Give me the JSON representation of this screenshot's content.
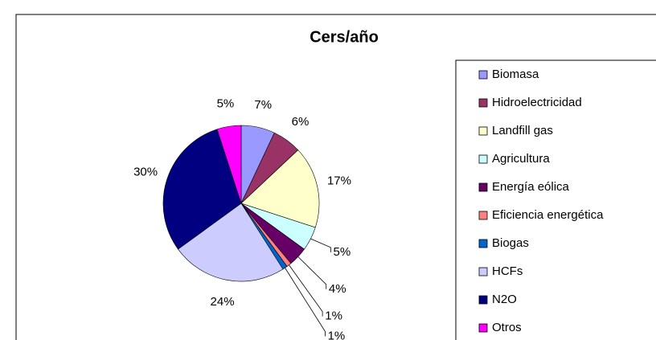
{
  "chart_data": {
    "type": "pie",
    "title": "Cers/año",
    "categories": [
      "Biomasa",
      "Hidroelectricidad",
      "Landfill gas",
      "Agricultura",
      "Energía eólica",
      "Eficiencia energética",
      "Biogas",
      "HCFs",
      "N2O",
      "Otros"
    ],
    "values": [
      7,
      6,
      17,
      5,
      4,
      1,
      1,
      24,
      30,
      5
    ],
    "value_labels": [
      "7%",
      "6%",
      "17%",
      "5%",
      "4%",
      "1%",
      "1%",
      "24%",
      "30%",
      "5%"
    ],
    "colors": [
      "#9999ff",
      "#993366",
      "#ffffcc",
      "#ccffff",
      "#660066",
      "#ff8080",
      "#0066cc",
      "#ccccff",
      "#000080",
      "#ff00ff"
    ],
    "legend": "right"
  }
}
